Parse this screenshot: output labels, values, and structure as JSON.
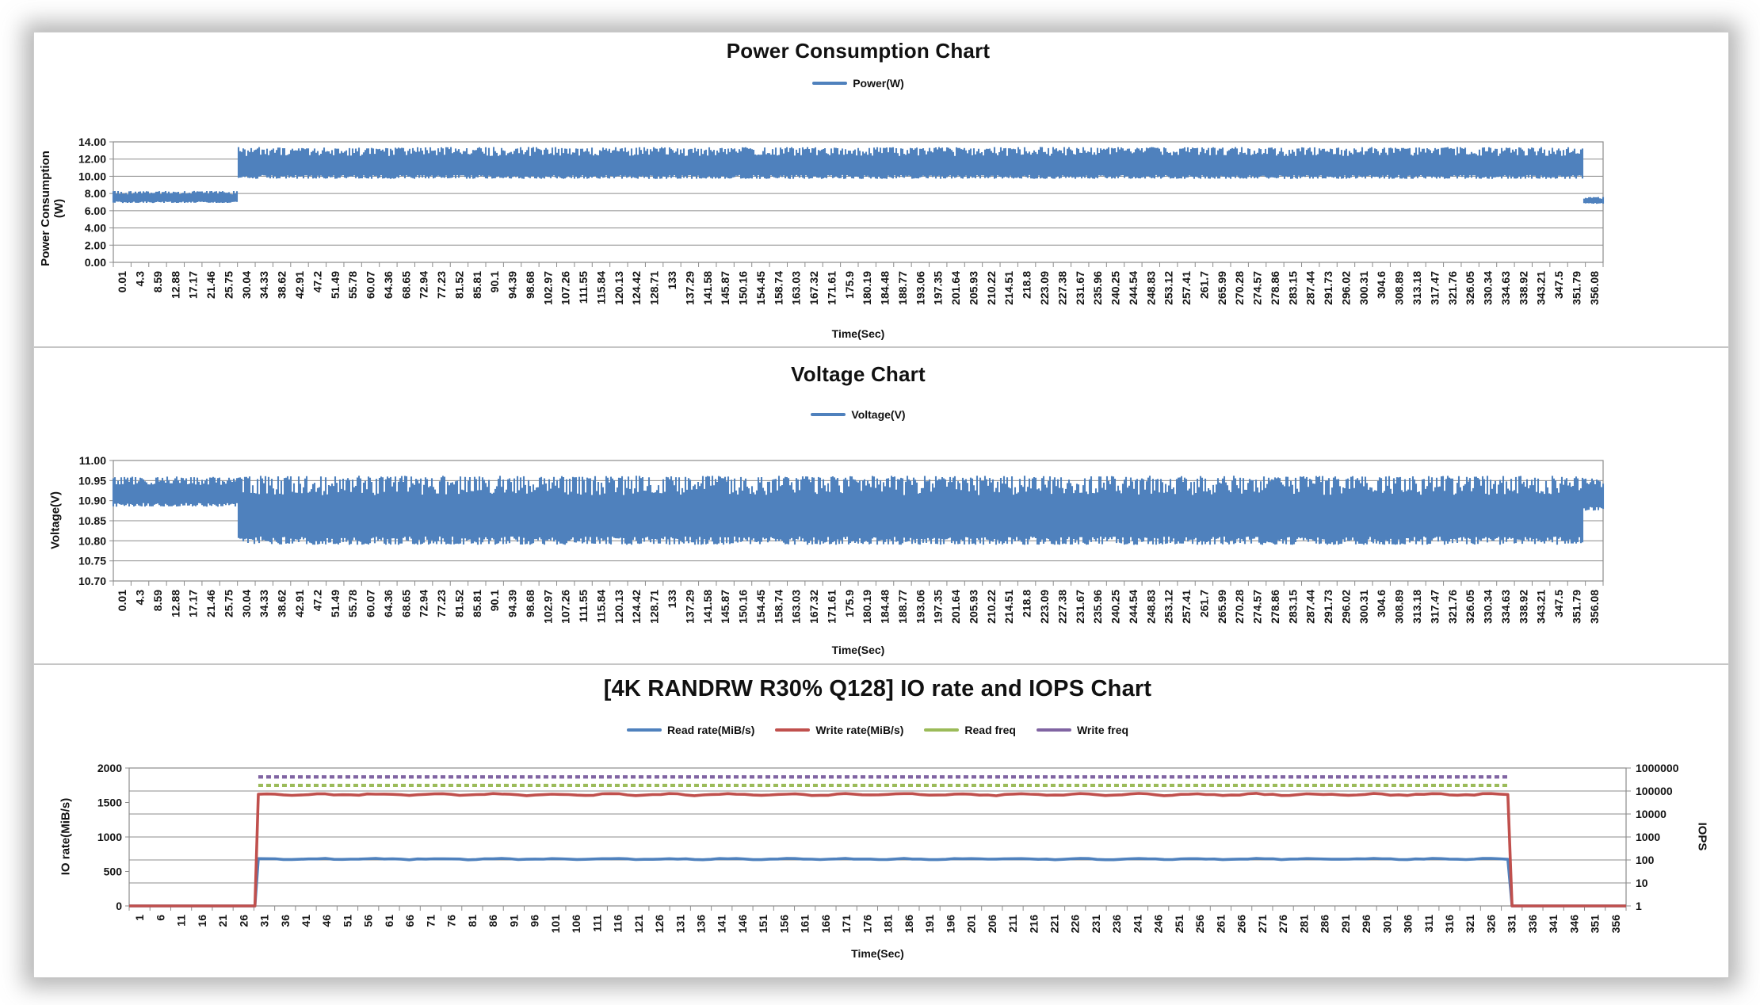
{
  "colors": {
    "series_blue": "#4F81BD",
    "series_red": "#C0504D",
    "series_green": "#9BBB59",
    "series_purple": "#8064A2",
    "grid": "#8c8c8c",
    "text": "#141414"
  },
  "chart_data": [
    {
      "type": "line",
      "title": "Power Consumption Chart",
      "xlabel": "Time(Sec)",
      "ylabel": "Power Consumption (W)",
      "ylim": [
        0,
        14
      ],
      "y_ticks": [
        "14.00",
        "12.00",
        "10.00",
        "8.00",
        "6.00",
        "4.00",
        "2.00",
        "0.00"
      ],
      "x_range_sec": [
        0.01,
        356.08
      ],
      "x_ticks": [
        "0.01",
        "4.3",
        "8.59",
        "12.88",
        "17.17",
        "21.46",
        "25.75",
        "30.04",
        "34.33",
        "38.62",
        "42.91",
        "47.2",
        "51.49",
        "55.78",
        "60.07",
        "64.36",
        "68.65",
        "72.94",
        "77.23",
        "81.52",
        "85.81",
        "90.1",
        "94.39",
        "98.68",
        "102.97",
        "107.26",
        "111.55",
        "115.84",
        "120.13",
        "124.42",
        "128.71",
        "133",
        "137.29",
        "141.58",
        "145.87",
        "150.16",
        "154.45",
        "158.74",
        "163.03",
        "167.32",
        "171.61",
        "175.9",
        "180.19",
        "184.48",
        "188.77",
        "193.06",
        "197.35",
        "201.64",
        "205.93",
        "210.22",
        "214.51",
        "218.8",
        "223.09",
        "227.38",
        "231.67",
        "235.96",
        "240.25",
        "244.54",
        "248.83",
        "253.12",
        "257.41",
        "261.7",
        "265.99",
        "270.28",
        "274.57",
        "278.86",
        "283.15",
        "287.44",
        "291.73",
        "296.02",
        "300.31",
        "304.6",
        "308.89",
        "313.18",
        "317.47",
        "321.76",
        "326.05",
        "330.34",
        "334.63",
        "338.92",
        "343.21",
        "347.5",
        "351.79",
        "356.08"
      ],
      "grid": true,
      "legend_position": "top",
      "series": [
        {
          "name": "Power(W)",
          "color": "#4F81BD",
          "style": "dense-noise-band",
          "segments": [
            {
              "from_sec": 0,
              "to_sec": 29.9,
              "min_w": 6.9,
              "max_w": 8.3
            },
            {
              "from_sec": 29.9,
              "to_sec": 351.6,
              "min_w": 9.7,
              "max_w": 13.4
            },
            {
              "from_sec": 351.6,
              "to_sec": 356.2,
              "min_w": 6.8,
              "max_w": 7.6
            }
          ]
        }
      ]
    },
    {
      "type": "line",
      "title": "Voltage Chart",
      "xlabel": "Time(Sec)",
      "ylabel": "Voltage(V)",
      "ylim": [
        10.7,
        11.0
      ],
      "y_ticks": [
        "11.00",
        "10.95",
        "10.90",
        "10.85",
        "10.80",
        "10.75",
        "10.70"
      ],
      "x_range_sec": [
        0.01,
        356.08
      ],
      "x_ticks": [
        "0.01",
        "4.3",
        "8.59",
        "12.88",
        "17.17",
        "21.46",
        "25.75",
        "30.04",
        "34.33",
        "38.62",
        "42.91",
        "47.2",
        "51.49",
        "55.78",
        "60.07",
        "64.36",
        "68.65",
        "72.94",
        "77.23",
        "81.52",
        "85.81",
        "90.1",
        "94.39",
        "98.68",
        "102.97",
        "107.26",
        "111.55",
        "115.84",
        "120.13",
        "124.42",
        "128.71",
        "133",
        "137.29",
        "141.58",
        "145.87",
        "150.16",
        "154.45",
        "158.74",
        "163.03",
        "167.32",
        "171.61",
        "175.9",
        "180.19",
        "184.48",
        "188.77",
        "193.06",
        "197.35",
        "201.64",
        "205.93",
        "210.22",
        "214.51",
        "218.8",
        "223.09",
        "227.38",
        "231.67",
        "235.96",
        "240.25",
        "244.54",
        "248.83",
        "253.12",
        "257.41",
        "261.7",
        "265.99",
        "270.28",
        "274.57",
        "278.86",
        "283.15",
        "287.44",
        "291.73",
        "296.02",
        "300.31",
        "304.6",
        "308.89",
        "313.18",
        "317.47",
        "321.76",
        "326.05",
        "330.34",
        "334.63",
        "338.92",
        "343.21",
        "347.5",
        "351.79",
        "356.08"
      ],
      "grid": true,
      "legend_position": "top",
      "series": [
        {
          "name": "Voltage(V)",
          "color": "#4F81BD",
          "style": "dense-noise-band",
          "segments": [
            {
              "from_sec": 0,
              "to_sec": 29.9,
              "min_v": 10.885,
              "max_v": 10.96
            },
            {
              "from_sec": 29.9,
              "to_sec": 351.6,
              "min_v": 10.79,
              "max_v": 10.962
            },
            {
              "from_sec": 351.6,
              "to_sec": 356.2,
              "min_v": 10.875,
              "max_v": 10.955
            }
          ]
        }
      ]
    },
    {
      "type": "line",
      "title": "[4K RANDRW R30% Q128] IO rate and IOPS Chart",
      "xlabel": "Time(Sec)",
      "ylabel_left": "IO rate(MiB/s)",
      "ylabel_right": "IOPS",
      "ylim_left": [
        0,
        2000
      ],
      "y_ticks_left": [
        "0",
        "500",
        "1000",
        "1500",
        "2000"
      ],
      "right_axis": {
        "scale": "log",
        "min": 1,
        "max": 1000000,
        "ticks": [
          "1",
          "10",
          "100",
          "1000",
          "10000",
          "100000",
          "1000000"
        ]
      },
      "x_range_sec": [
        1,
        356
      ],
      "x_ticks": [
        "1",
        "6",
        "11",
        "16",
        "21",
        "26",
        "31",
        "36",
        "41",
        "46",
        "51",
        "56",
        "61",
        "66",
        "71",
        "76",
        "81",
        "86",
        "91",
        "96",
        "101",
        "106",
        "111",
        "116",
        "121",
        "126",
        "131",
        "136",
        "141",
        "146",
        "151",
        "156",
        "161",
        "166",
        "171",
        "176",
        "181",
        "186",
        "191",
        "196",
        "201",
        "206",
        "211",
        "216",
        "221",
        "226",
        "231",
        "236",
        "241",
        "246",
        "251",
        "256",
        "261",
        "266",
        "271",
        "276",
        "281",
        "286",
        "291",
        "296",
        "301",
        "306",
        "311",
        "316",
        "321",
        "326",
        "331",
        "336",
        "341",
        "346",
        "351",
        "356"
      ],
      "grid": true,
      "legend_position": "top",
      "series": [
        {
          "name": "Read rate(MiB/s)",
          "color": "#4F81BD",
          "axis": "left",
          "style": "step",
          "idle_value": 0,
          "steady_value": 680,
          "active_from_sec": 30,
          "active_to_sec": 329
        },
        {
          "name": "Write rate(MiB/s)",
          "color": "#C0504D",
          "axis": "left",
          "style": "step",
          "idle_value": 0,
          "steady_value": 1615,
          "active_from_sec": 30,
          "active_to_sec": 329
        },
        {
          "name": "Read freq",
          "color": "#9BBB59",
          "axis": "right",
          "style": "segment-dashed",
          "steady_value": 175000,
          "active_from_sec": 30,
          "active_to_sec": 329
        },
        {
          "name": "Write freq",
          "color": "#8064A2",
          "axis": "right",
          "style": "segment-dashed",
          "steady_value": 410000,
          "active_from_sec": 30,
          "active_to_sec": 329
        }
      ]
    }
  ]
}
